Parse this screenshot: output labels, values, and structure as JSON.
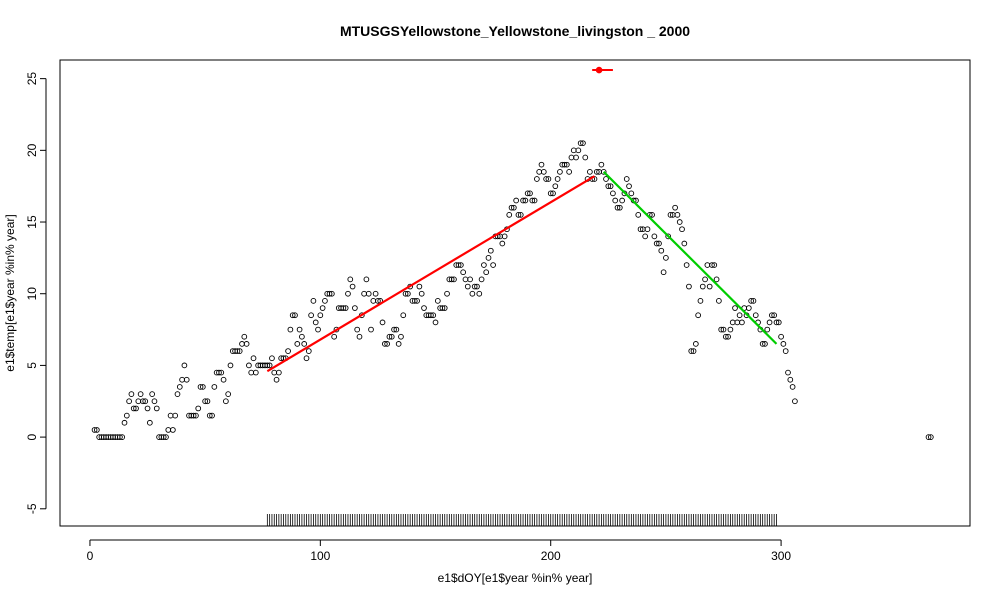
{
  "chart_data": {
    "type": "scatter",
    "title": "MTUSGSYellowstone_Yellowstone_livingston _ 2000",
    "xlabel": "e1$dOY[e1$year %in% year]",
    "ylabel": "e1$temp[e1$year %in% year]",
    "xlim": [
      -13,
      382
    ],
    "ylim": [
      -6.2,
      26.3
    ],
    "xticks": [
      0,
      100,
      200,
      300
    ],
    "yticks": [
      -5,
      0,
      5,
      10,
      15,
      20,
      25
    ],
    "grid": false,
    "colors": {
      "points": "#000000",
      "rise_line": "#ff0000",
      "fall_line": "#00cd00",
      "marker": "#ff0000",
      "rug": "#000000"
    },
    "series": [
      {
        "type": "points",
        "values": [
          [
            2,
            0.5
          ],
          [
            3,
            0.5
          ],
          [
            4,
            0
          ],
          [
            5,
            0
          ],
          [
            6,
            0
          ],
          [
            7,
            0
          ],
          [
            8,
            0
          ],
          [
            9,
            0
          ],
          [
            10,
            0
          ],
          [
            11,
            0
          ],
          [
            12,
            0
          ],
          [
            13,
            0
          ],
          [
            14,
            0
          ],
          [
            15,
            1
          ],
          [
            16,
            1.5
          ],
          [
            17,
            2.5
          ],
          [
            18,
            3
          ],
          [
            19,
            2
          ],
          [
            20,
            2
          ],
          [
            21,
            2.5
          ],
          [
            22,
            3
          ],
          [
            23,
            2.5
          ],
          [
            24,
            2.5
          ],
          [
            25,
            2
          ],
          [
            26,
            1
          ],
          [
            27,
            3
          ],
          [
            28,
            2.5
          ],
          [
            29,
            2
          ],
          [
            30,
            0
          ],
          [
            31,
            0
          ],
          [
            32,
            0
          ],
          [
            33,
            0
          ],
          [
            34,
            0.5
          ],
          [
            35,
            1.5
          ],
          [
            36,
            0.5
          ],
          [
            37,
            1.5
          ],
          [
            38,
            3
          ],
          [
            39,
            3.5
          ],
          [
            40,
            4
          ],
          [
            41,
            5
          ],
          [
            42,
            4
          ],
          [
            43,
            1.5
          ],
          [
            44,
            1.5
          ],
          [
            45,
            1.5
          ],
          [
            46,
            1.5
          ],
          [
            47,
            2
          ],
          [
            48,
            3.5
          ],
          [
            49,
            3.5
          ],
          [
            50,
            2.5
          ],
          [
            51,
            2.5
          ],
          [
            52,
            1.5
          ],
          [
            53,
            1.5
          ],
          [
            54,
            3.5
          ],
          [
            55,
            4.5
          ],
          [
            56,
            4.5
          ],
          [
            57,
            4.5
          ],
          [
            58,
            4
          ],
          [
            59,
            2.5
          ],
          [
            60,
            3
          ],
          [
            61,
            5
          ],
          [
            62,
            6
          ],
          [
            63,
            6
          ],
          [
            64,
            6
          ],
          [
            65,
            6
          ],
          [
            66,
            6.5
          ],
          [
            67,
            7
          ],
          [
            68,
            6.5
          ],
          [
            69,
            5
          ],
          [
            70,
            4.5
          ],
          [
            71,
            5.5
          ],
          [
            72,
            4.5
          ],
          [
            73,
            5
          ],
          [
            74,
            5
          ],
          [
            75,
            5
          ],
          [
            76,
            5
          ],
          [
            77,
            5
          ],
          [
            78,
            5
          ],
          [
            79,
            5.5
          ],
          [
            80,
            4.5
          ],
          [
            81,
            4
          ],
          [
            82,
            4.5
          ],
          [
            83,
            5.5
          ],
          [
            84,
            5.5
          ],
          [
            85,
            5.5
          ],
          [
            86,
            6
          ],
          [
            87,
            7.5
          ],
          [
            88,
            8.5
          ],
          [
            89,
            8.5
          ],
          [
            90,
            6.5
          ],
          [
            91,
            7.5
          ],
          [
            92,
            7
          ],
          [
            93,
            6.5
          ],
          [
            94,
            5.5
          ],
          [
            95,
            6
          ],
          [
            96,
            8.5
          ],
          [
            97,
            9.5
          ],
          [
            98,
            8
          ],
          [
            99,
            7.5
          ],
          [
            100,
            8.5
          ],
          [
            101,
            9
          ],
          [
            102,
            9.5
          ],
          [
            103,
            10
          ],
          [
            104,
            10
          ],
          [
            105,
            10
          ],
          [
            106,
            7
          ],
          [
            107,
            7.5
          ],
          [
            108,
            9
          ],
          [
            109,
            9
          ],
          [
            110,
            9
          ],
          [
            111,
            9
          ],
          [
            112,
            10
          ],
          [
            113,
            11
          ],
          [
            114,
            10.5
          ],
          [
            115,
            9
          ],
          [
            116,
            7.5
          ],
          [
            117,
            7
          ],
          [
            118,
            8.5
          ],
          [
            119,
            10
          ],
          [
            120,
            11
          ],
          [
            121,
            10
          ],
          [
            122,
            7.5
          ],
          [
            123,
            9.5
          ],
          [
            124,
            10
          ],
          [
            125,
            9.5
          ],
          [
            126,
            9.5
          ],
          [
            127,
            8
          ],
          [
            128,
            6.5
          ],
          [
            129,
            6.5
          ],
          [
            130,
            7
          ],
          [
            131,
            7
          ],
          [
            132,
            7.5
          ],
          [
            133,
            7.5
          ],
          [
            134,
            6.5
          ],
          [
            135,
            7
          ],
          [
            136,
            8.5
          ],
          [
            137,
            10
          ],
          [
            138,
            10
          ],
          [
            139,
            10.5
          ],
          [
            140,
            9.5
          ],
          [
            141,
            9.5
          ],
          [
            142,
            9.5
          ],
          [
            143,
            10.5
          ],
          [
            144,
            10
          ],
          [
            145,
            9
          ],
          [
            146,
            8.5
          ],
          [
            147,
            8.5
          ],
          [
            148,
            8.5
          ],
          [
            149,
            8.5
          ],
          [
            150,
            8
          ],
          [
            151,
            9.5
          ],
          [
            152,
            9
          ],
          [
            153,
            9
          ],
          [
            154,
            9
          ],
          [
            155,
            10
          ],
          [
            156,
            11
          ],
          [
            157,
            11
          ],
          [
            158,
            11
          ],
          [
            159,
            12
          ],
          [
            160,
            12
          ],
          [
            161,
            12
          ],
          [
            162,
            11.5
          ],
          [
            163,
            11
          ],
          [
            164,
            10.5
          ],
          [
            165,
            11
          ],
          [
            166,
            10
          ],
          [
            167,
            10.5
          ],
          [
            168,
            10.5
          ],
          [
            169,
            10
          ],
          [
            170,
            11
          ],
          [
            171,
            12
          ],
          [
            172,
            11.5
          ],
          [
            173,
            12.5
          ],
          [
            174,
            13
          ],
          [
            175,
            12
          ],
          [
            176,
            14
          ],
          [
            177,
            14
          ],
          [
            178,
            14
          ],
          [
            179,
            13.5
          ],
          [
            180,
            14
          ],
          [
            181,
            14.5
          ],
          [
            182,
            15.5
          ],
          [
            183,
            16
          ],
          [
            184,
            16
          ],
          [
            185,
            16.5
          ],
          [
            186,
            15.5
          ],
          [
            187,
            15.5
          ],
          [
            188,
            16.5
          ],
          [
            189,
            16.5
          ],
          [
            190,
            17
          ],
          [
            191,
            17
          ],
          [
            192,
            16.5
          ],
          [
            193,
            16.5
          ],
          [
            194,
            18
          ],
          [
            195,
            18.5
          ],
          [
            196,
            19
          ],
          [
            197,
            18.5
          ],
          [
            198,
            18
          ],
          [
            199,
            18
          ],
          [
            200,
            17
          ],
          [
            201,
            17
          ],
          [
            202,
            17.5
          ],
          [
            203,
            18
          ],
          [
            204,
            18.5
          ],
          [
            205,
            19
          ],
          [
            206,
            19
          ],
          [
            207,
            19
          ],
          [
            208,
            18.5
          ],
          [
            209,
            19.5
          ],
          [
            210,
            20
          ],
          [
            211,
            19.5
          ],
          [
            212,
            20
          ],
          [
            213,
            20.5
          ],
          [
            214,
            20.5
          ],
          [
            215,
            19.5
          ],
          [
            216,
            18
          ],
          [
            217,
            18.5
          ],
          [
            218,
            18
          ],
          [
            219,
            18
          ],
          [
            220,
            18.5
          ],
          [
            221,
            18.5
          ],
          [
            222,
            19
          ],
          [
            223,
            18.5
          ],
          [
            224,
            18
          ],
          [
            225,
            17.5
          ],
          [
            226,
            17.5
          ],
          [
            227,
            17
          ],
          [
            228,
            16.5
          ],
          [
            229,
            16
          ],
          [
            230,
            16
          ],
          [
            231,
            16.5
          ],
          [
            232,
            17
          ],
          [
            233,
            18
          ],
          [
            234,
            17.5
          ],
          [
            235,
            17
          ],
          [
            236,
            16.5
          ],
          [
            237,
            16.5
          ],
          [
            238,
            15.5
          ],
          [
            239,
            14.5
          ],
          [
            240,
            14.5
          ],
          [
            241,
            14
          ],
          [
            242,
            14.5
          ],
          [
            243,
            15.5
          ],
          [
            244,
            15.5
          ],
          [
            245,
            14
          ],
          [
            246,
            13.5
          ],
          [
            247,
            13.5
          ],
          [
            248,
            13
          ],
          [
            249,
            11.5
          ],
          [
            250,
            12.5
          ],
          [
            251,
            14
          ],
          [
            252,
            15.5
          ],
          [
            253,
            15.5
          ],
          [
            254,
            16
          ],
          [
            255,
            15.5
          ],
          [
            256,
            15
          ],
          [
            257,
            14.5
          ],
          [
            258,
            13.5
          ],
          [
            259,
            12
          ],
          [
            260,
            10.5
          ],
          [
            261,
            6
          ],
          [
            262,
            6
          ],
          [
            263,
            6.5
          ],
          [
            264,
            8.5
          ],
          [
            265,
            9.5
          ],
          [
            266,
            10.5
          ],
          [
            267,
            11
          ],
          [
            268,
            12
          ],
          [
            269,
            10.5
          ],
          [
            270,
            12
          ],
          [
            271,
            12
          ],
          [
            272,
            11
          ],
          [
            273,
            9.5
          ],
          [
            274,
            7.5
          ],
          [
            275,
            7.5
          ],
          [
            276,
            7
          ],
          [
            277,
            7
          ],
          [
            278,
            7.5
          ],
          [
            279,
            8
          ],
          [
            280,
            9
          ],
          [
            281,
            8
          ],
          [
            282,
            8.5
          ],
          [
            283,
            8
          ],
          [
            284,
            9
          ],
          [
            285,
            8.5
          ],
          [
            286,
            9
          ],
          [
            287,
            9.5
          ],
          [
            288,
            9.5
          ],
          [
            289,
            8.5
          ],
          [
            290,
            8
          ],
          [
            291,
            7.5
          ],
          [
            292,
            6.5
          ],
          [
            293,
            6.5
          ],
          [
            294,
            7.5
          ],
          [
            295,
            8
          ],
          [
            296,
            8.5
          ],
          [
            297,
            8.5
          ],
          [
            298,
            8
          ],
          [
            299,
            8
          ],
          [
            300,
            7
          ],
          [
            301,
            6.5
          ],
          [
            302,
            6
          ],
          [
            303,
            4.5
          ],
          [
            304,
            4
          ],
          [
            305,
            3.5
          ],
          [
            306,
            2.5
          ],
          [
            364,
            0
          ],
          [
            365,
            0
          ]
        ]
      },
      {
        "type": "line",
        "color": "#ff0000",
        "values": [
          [
            77,
            4.6
          ],
          [
            219,
            18.2
          ]
        ]
      },
      {
        "type": "line",
        "color": "#00cd00",
        "values": [
          [
            223,
            18.5
          ],
          [
            298,
            6.5
          ]
        ]
      },
      {
        "type": "marker",
        "color": "#ff0000",
        "values": [
          [
            221,
            25.6
          ]
        ],
        "xerr": [
          218,
          227
        ]
      },
      {
        "type": "rug",
        "side": "bottom",
        "range": [
          77,
          298
        ]
      }
    ]
  }
}
